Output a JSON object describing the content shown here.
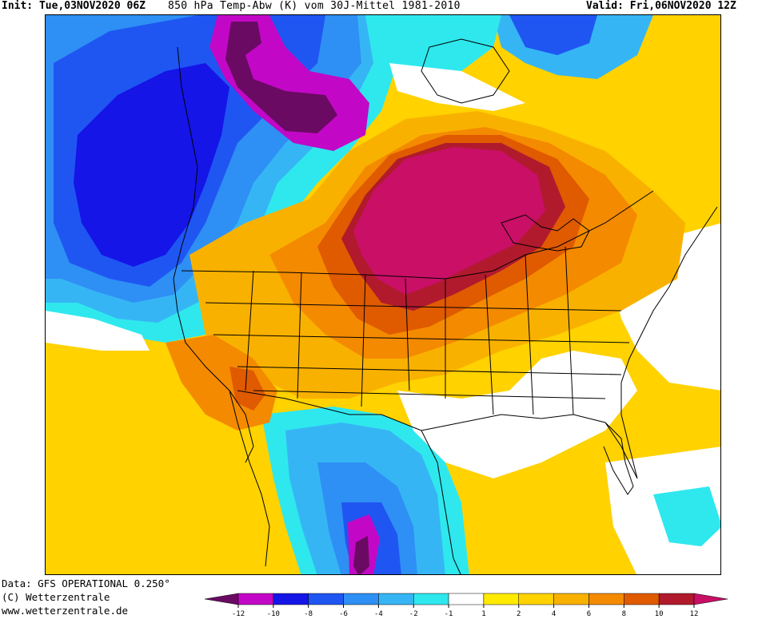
{
  "header": {
    "init": "Init: Tue,03NOV2020 06Z",
    "title": "850 hPa Temp-Abw (K) vom 30J-Mittel 1981-2010",
    "valid": "Valid: Fri,06NOV2020 12Z"
  },
  "footer": {
    "data": "Data: GFS OPERATIONAL 0.250°",
    "copyright": "(C) Wetterzentrale",
    "url": "www.wetterzentrale.de"
  },
  "legend": {
    "ticks": [
      "-12",
      "-10",
      "-8",
      "-6",
      "-4",
      "-2",
      "-1",
      "1",
      "2",
      "4",
      "6",
      "8",
      "10",
      "12"
    ],
    "colors": [
      "#6a0a63",
      "#c208c6",
      "#1515e8",
      "#1f56f2",
      "#2e8ff4",
      "#36b5f4",
      "#2ee8ee",
      "#ffffff",
      "#ffea00",
      "#ffd200",
      "#f9b100",
      "#f48a00",
      "#e05a00",
      "#b11a2d",
      "#c90f66"
    ]
  },
  "map_data": {
    "variable": "850 hPa temperature anomaly",
    "unit": "K",
    "palette": {
      "neg12": "#6a0a63",
      "neg10": "#c208c6",
      "neg8": "#1515e8",
      "neg6": "#1f56f2",
      "neg4": "#2e8ff4",
      "neg2": "#36b5f4",
      "neg1": "#2ee8ee",
      "zero": "#ffffff",
      "pos1": "#ffea00",
      "pos2": "#ffd200",
      "pos4": "#f9b100",
      "pos6": "#f48a00",
      "pos8": "#e05a00",
      "pos10": "#b11a2d",
      "pos12": "#c90f66",
      "coast": "#000000"
    }
  }
}
